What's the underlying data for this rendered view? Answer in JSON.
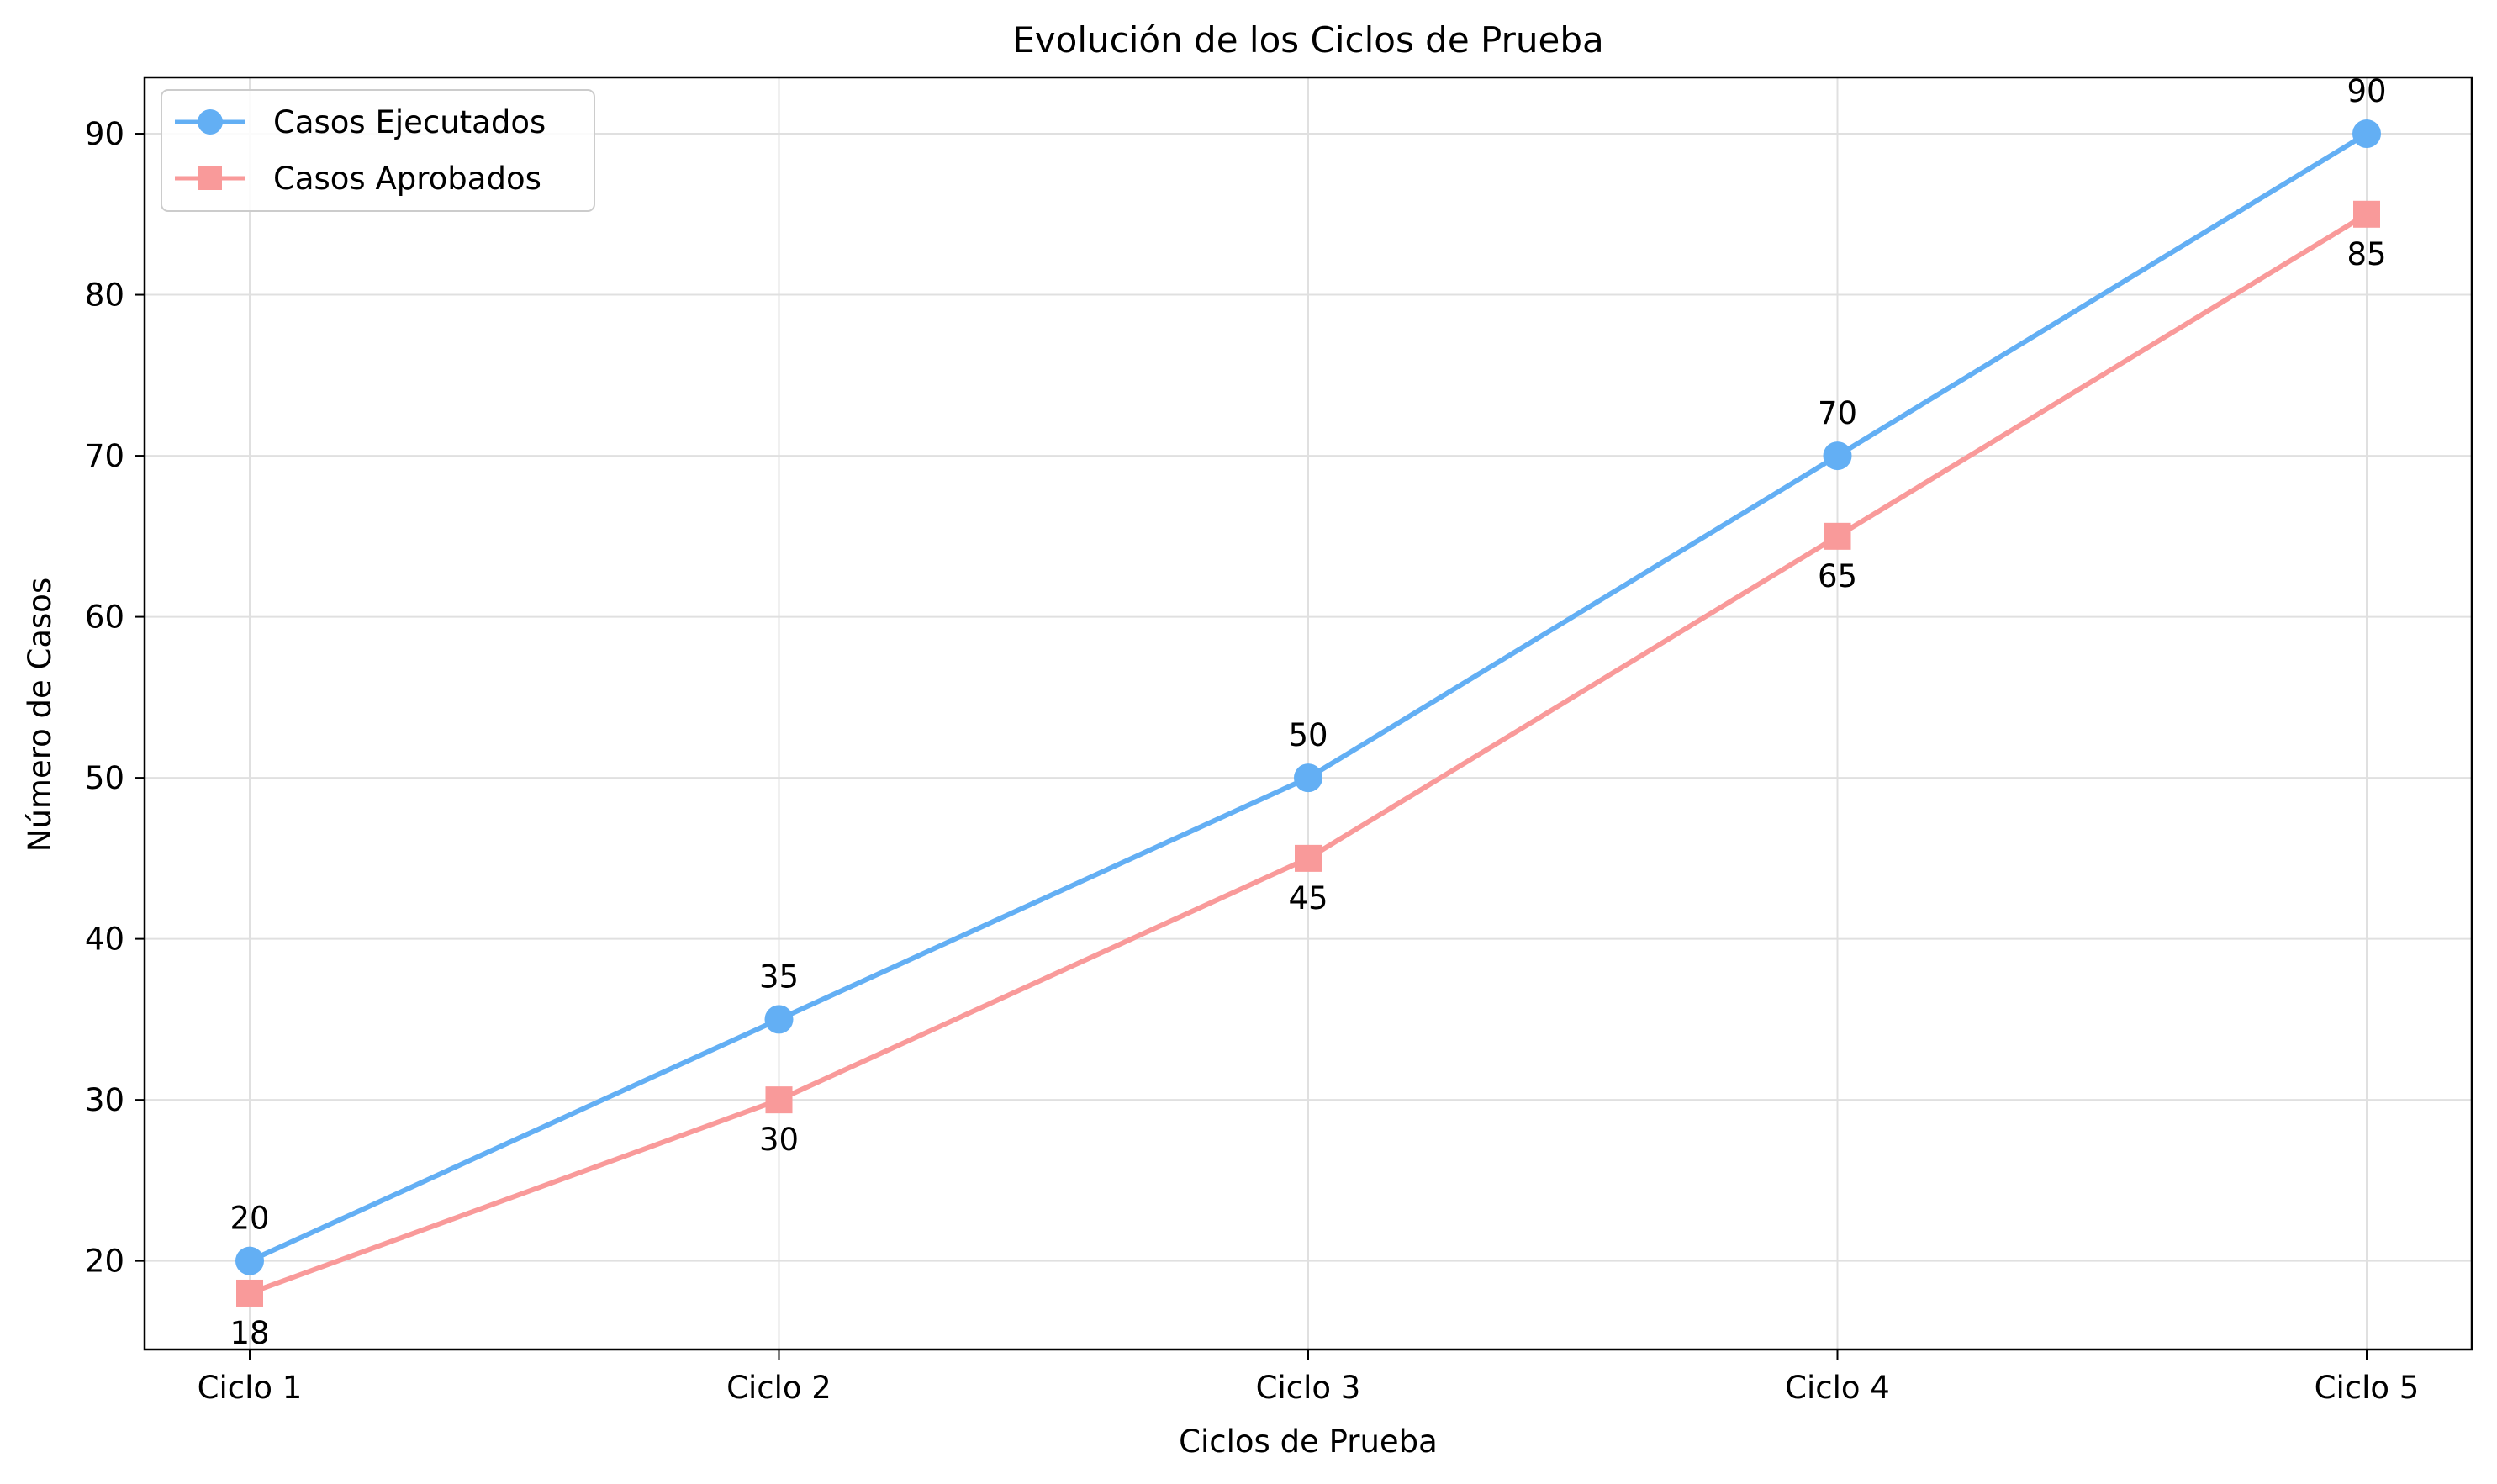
{
  "chart_data": {
    "type": "line",
    "title": "Evolución de los Ciclos de Prueba",
    "xlabel": "Ciclos de Prueba",
    "ylabel": "Número de Casos",
    "categories": [
      "Ciclo 1",
      "Ciclo 2",
      "Ciclo 3",
      "Ciclo 4",
      "Ciclo 5"
    ],
    "ylim": [
      14.5,
      93.5
    ],
    "yticks": [
      20,
      30,
      40,
      50,
      60,
      70,
      80,
      90
    ],
    "grid": true,
    "legend_position": "top-left",
    "series": [
      {
        "name": "Casos Ejecutados",
        "values": [
          20,
          35,
          50,
          70,
          90
        ],
        "color": "#63aff4",
        "marker": "circle",
        "label_placement": "above"
      },
      {
        "name": "Casos Aprobados",
        "values": [
          18,
          30,
          45,
          65,
          85
        ],
        "color": "#f99a9a",
        "marker": "square",
        "label_placement": "below"
      }
    ]
  }
}
